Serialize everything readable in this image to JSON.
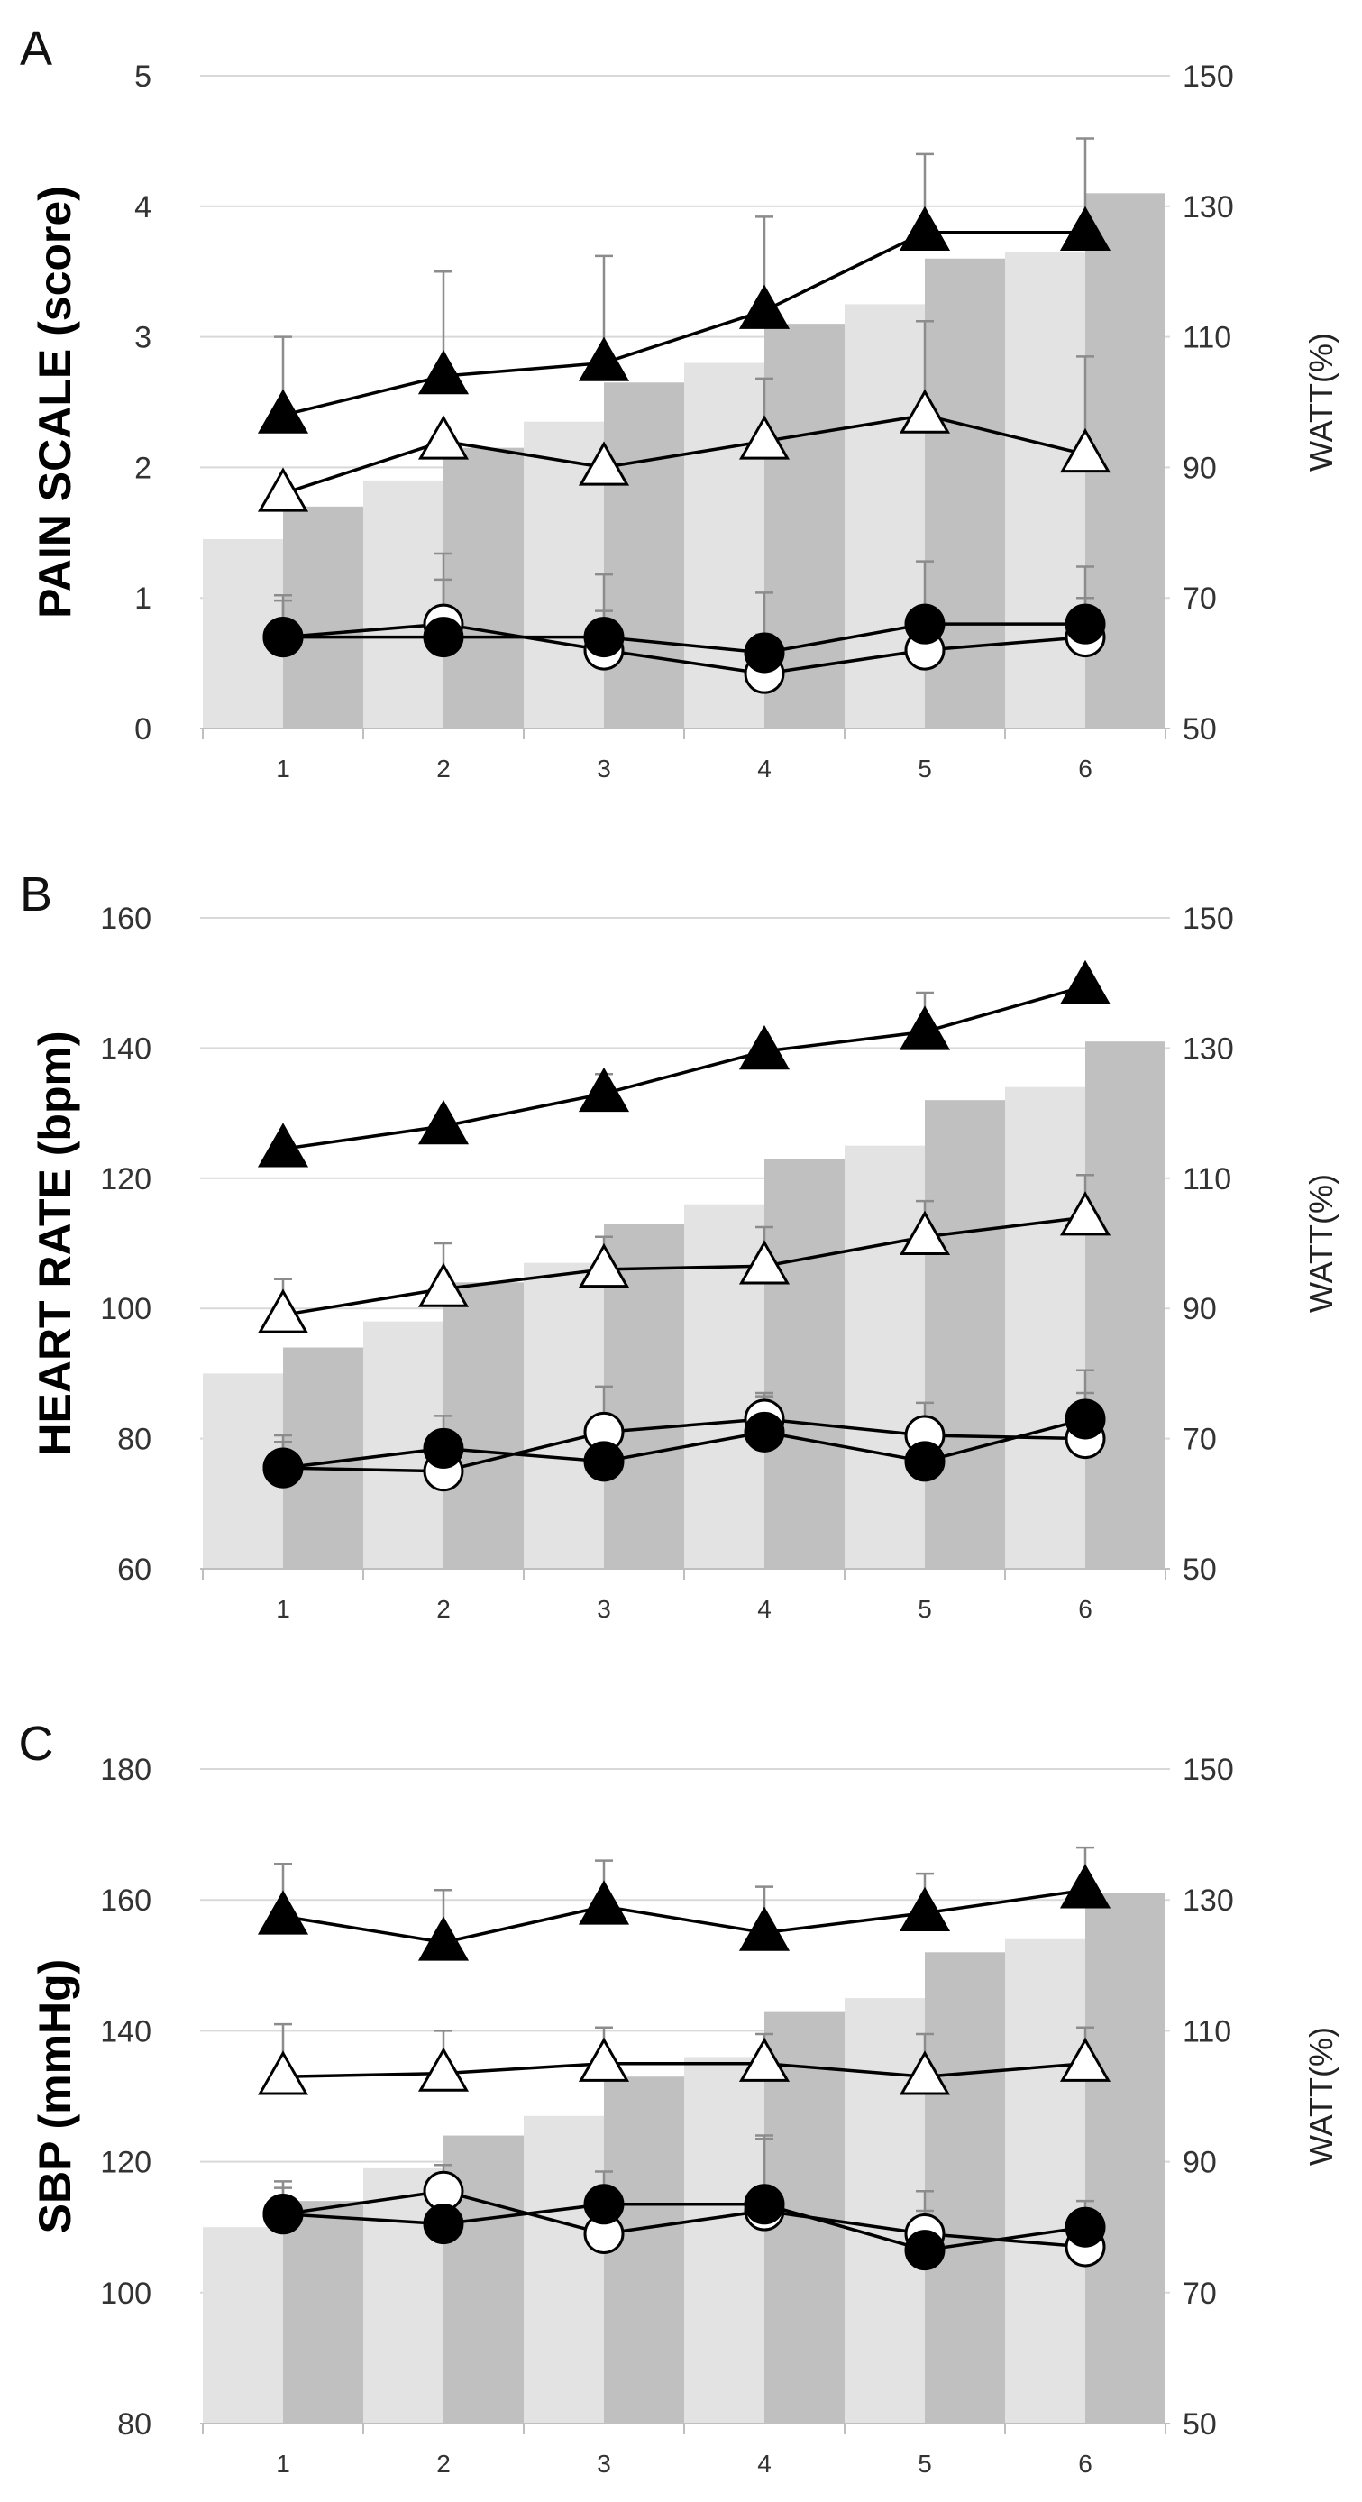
{
  "chart_data": [
    {
      "type": "bar",
      "panel_label": "A",
      "ylabel": "PAIN SCALE (score)",
      "y2label": "WATT(%)",
      "categories": [
        "1",
        "2",
        "3",
        "4",
        "5",
        "6"
      ],
      "ylim": [
        0,
        5
      ],
      "yticks": [
        0,
        1,
        2,
        3,
        4,
        5
      ],
      "y2lim": [
        50,
        150
      ],
      "y2ticks": [
        50,
        70,
        90,
        110,
        130,
        150
      ],
      "grid": true,
      "bars": [
        {
          "color": "#e3e3e3",
          "values": [
            79,
            88,
            97,
            106,
            115,
            123
          ]
        },
        {
          "color": "#c0c0c0",
          "values": [
            84,
            93,
            103,
            112,
            122,
            132
          ]
        }
      ],
      "series": [
        {
          "marker": "triangle",
          "fill": "#000000",
          "values": [
            2.4,
            2.7,
            2.8,
            3.2,
            3.8,
            3.8
          ],
          "err": [
            0.6,
            0.8,
            0.82,
            0.72,
            0.6,
            0.72
          ]
        },
        {
          "marker": "triangle",
          "fill": "#ffffff",
          "values": [
            1.8,
            2.2,
            2.0,
            2.2,
            2.4,
            2.1
          ],
          "err": [
            0,
            0,
            0,
            0.48,
            0.72,
            0.75
          ]
        },
        {
          "marker": "circle",
          "fill": "#ffffff",
          "values": [
            0.7,
            0.8,
            0.6,
            0.42,
            0.6,
            0.7
          ],
          "err": [
            0.32,
            0.34,
            0.3,
            0.3,
            0.3,
            0.3
          ]
        },
        {
          "marker": "circle",
          "fill": "#000000",
          "values": [
            0.7,
            0.7,
            0.7,
            0.58,
            0.8,
            0.8
          ],
          "err": [
            0.28,
            0.64,
            0.48,
            0.46,
            0.48,
            0.44
          ]
        }
      ]
    },
    {
      "type": "bar",
      "panel_label": "B",
      "ylabel": "HEART RATE (bpm)",
      "y2label": "WATT(%)",
      "categories": [
        "1",
        "2",
        "3",
        "4",
        "5",
        "6"
      ],
      "ylim": [
        60,
        160
      ],
      "yticks": [
        60,
        80,
        100,
        120,
        140,
        160
      ],
      "y2lim": [
        50,
        150
      ],
      "y2ticks": [
        50,
        70,
        90,
        110,
        130,
        150
      ],
      "grid": true,
      "bars": [
        {
          "color": "#e3e3e3",
          "values": [
            80,
            88,
            97,
            106,
            115,
            124
          ]
        },
        {
          "color": "#c0c0c0",
          "values": [
            84,
            94,
            103,
            113,
            122,
            131
          ]
        }
      ],
      "series": [
        {
          "marker": "triangle",
          "fill": "#000000",
          "values": [
            124.5,
            128,
            133,
            139.5,
            142.5,
            149.5
          ],
          "err": [
            0,
            0,
            3,
            0,
            6,
            0
          ]
        },
        {
          "marker": "triangle",
          "fill": "#ffffff",
          "values": [
            99,
            103,
            106,
            106.5,
            111,
            114
          ],
          "err": [
            5.5,
            7,
            5,
            6,
            5.5,
            6.5
          ]
        },
        {
          "marker": "circle",
          "fill": "#ffffff",
          "values": [
            75.5,
            75,
            81,
            83,
            80.5,
            80
          ],
          "err": [
            5,
            4.5,
            7,
            4,
            5,
            7
          ]
        },
        {
          "marker": "circle",
          "fill": "#000000",
          "values": [
            75.5,
            78.5,
            76.5,
            81,
            76.5,
            83
          ],
          "err": [
            4,
            5,
            5.5,
            5.5,
            5.5,
            7.5
          ]
        }
      ]
    },
    {
      "type": "bar",
      "panel_label": "C",
      "ylabel": "SBP (mmHg)",
      "y2label": "WATT(%)",
      "categories": [
        "1",
        "2",
        "3",
        "4",
        "5",
        "6"
      ],
      "ylim": [
        80,
        180
      ],
      "yticks": [
        80,
        100,
        120,
        140,
        160,
        180
      ],
      "y2lim": [
        50,
        150
      ],
      "y2ticks": [
        50,
        70,
        90,
        110,
        130,
        150
      ],
      "grid": true,
      "bars": [
        {
          "color": "#e3e3e3",
          "values": [
            80,
            89,
            97,
            106,
            115,
            124
          ]
        },
        {
          "color": "#c0c0c0",
          "values": [
            84,
            94,
            103,
            113,
            122,
            131
          ]
        }
      ],
      "series": [
        {
          "marker": "triangle",
          "fill": "#000000",
          "values": [
            157.5,
            153.5,
            159,
            155,
            158,
            161.5
          ],
          "err": [
            8,
            8,
            7,
            7,
            6,
            6.5
          ]
        },
        {
          "marker": "triangle",
          "fill": "#ffffff",
          "values": [
            133,
            133.5,
            135,
            135,
            133,
            135
          ],
          "err": [
            8,
            6.5,
            5.5,
            4.5,
            6.5,
            5.5
          ]
        },
        {
          "marker": "circle",
          "fill": "#ffffff",
          "values": [
            112,
            115.5,
            109,
            112.5,
            109,
            107
          ],
          "err": [
            4,
            4,
            6,
            11,
            6.5,
            4
          ]
        },
        {
          "marker": "circle",
          "fill": "#000000",
          "values": [
            112,
            110.5,
            113.5,
            113.5,
            106.5,
            110
          ],
          "err": [
            5,
            5,
            5,
            10.5,
            6,
            4
          ]
        }
      ]
    }
  ]
}
